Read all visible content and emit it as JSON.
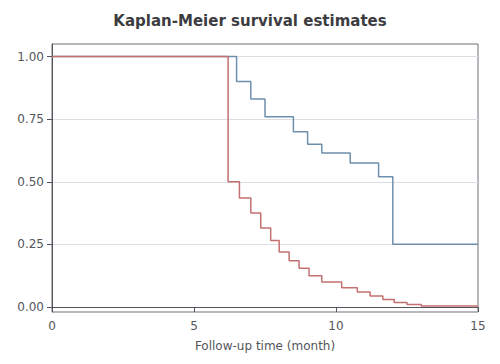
{
  "chart_data": {
    "type": "step",
    "title": "Kaplan-Meier survival estimates",
    "xlabel": "Follow-up time (month)",
    "xlim": [
      0,
      15
    ],
    "ylim": [
      -0.02,
      1.05
    ],
    "xticks": [
      0,
      5,
      10,
      15
    ],
    "yticks": [
      {
        "value": 0,
        "label": "0.00"
      },
      {
        "value": 0.25,
        "label": "0.25"
      },
      {
        "value": 0.5,
        "label": "0.50"
      },
      {
        "value": 0.75,
        "label": "0.75"
      },
      {
        "value": 1,
        "label": "1.00"
      }
    ],
    "grid": true,
    "series": [
      {
        "color": "#6e8fac",
        "x": [
          0,
          6,
          6.5,
          7.0,
          7.5,
          8.5,
          9.0,
          9.5,
          10.5,
          11.5,
          12.0,
          15
        ],
        "values": [
          1.0,
          1.0,
          0.9,
          0.83,
          0.76,
          0.7,
          0.65,
          0.615,
          0.575,
          0.52,
          0.25,
          0.25
        ]
      },
      {
        "color": "#c47070",
        "x": [
          0,
          5.85,
          6.2,
          6.6,
          7.0,
          7.35,
          7.7,
          8.0,
          8.35,
          8.7,
          9.05,
          9.5,
          10.2,
          10.75,
          11.2,
          11.65,
          12.05,
          12.5,
          13.0,
          15
        ],
        "values": [
          1.0,
          1.0,
          0.5,
          0.435,
          0.375,
          0.315,
          0.265,
          0.22,
          0.185,
          0.155,
          0.125,
          0.1,
          0.077,
          0.06,
          0.044,
          0.03,
          0.018,
          0.01,
          0.004,
          0.004
        ]
      }
    ]
  }
}
